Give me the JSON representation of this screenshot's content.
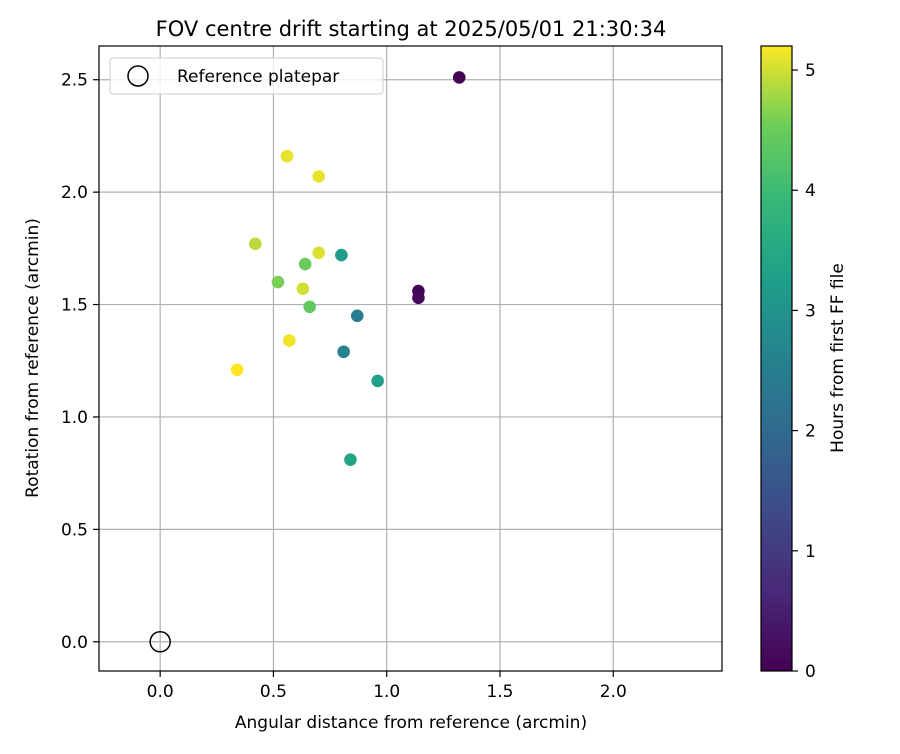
{
  "chart_data": {
    "type": "scatter",
    "title": "FOV centre drift starting at 2025/05/01 21:30:34",
    "xlabel": "Angular distance from reference (arcmin)",
    "ylabel": "Rotation from reference (arcmin)",
    "xlim": [
      -0.27,
      2.48
    ],
    "ylim": [
      -0.13,
      2.65
    ],
    "x_ticks": [
      0.0,
      0.5,
      1.0,
      1.5,
      2.0
    ],
    "x_tick_labels": [
      "0.0",
      "0.5",
      "1.0",
      "1.5",
      "2.0"
    ],
    "y_ticks": [
      0.0,
      0.5,
      1.0,
      1.5,
      2.0,
      2.5
    ],
    "y_tick_labels": [
      "0.0",
      "0.5",
      "1.0",
      "1.5",
      "2.0",
      "2.5"
    ],
    "grid": true,
    "legend": {
      "placement": "top-left",
      "entries": [
        {
          "label": "Reference platepar",
          "marker": "open-circle"
        }
      ]
    },
    "reference_point": {
      "x": 0.0,
      "y": 0.0
    },
    "colorbar": {
      "label": "Hours from first FF file",
      "colormap": "viridis",
      "range": [
        0,
        5.2
      ],
      "ticks": [
        0,
        1,
        2,
        3,
        4,
        5
      ],
      "tick_labels": [
        "0",
        "1",
        "2",
        "3",
        "4",
        "5"
      ]
    },
    "points": [
      {
        "x": 1.32,
        "y": 2.51,
        "hours": 0.0
      },
      {
        "x": 1.14,
        "y": 1.56,
        "hours": 0.05
      },
      {
        "x": 1.14,
        "y": 1.53,
        "hours": 0.1
      },
      {
        "x": 0.87,
        "y": 1.45,
        "hours": 2.5
      },
      {
        "x": 0.81,
        "y": 1.29,
        "hours": 2.6
      },
      {
        "x": 0.8,
        "y": 1.72,
        "hours": 3.2
      },
      {
        "x": 0.96,
        "y": 1.16,
        "hours": 3.3
      },
      {
        "x": 0.84,
        "y": 0.81,
        "hours": 3.4
      },
      {
        "x": 0.66,
        "y": 1.49,
        "hours": 4.4
      },
      {
        "x": 0.64,
        "y": 1.68,
        "hours": 4.5
      },
      {
        "x": 0.52,
        "y": 1.6,
        "hours": 4.6
      },
      {
        "x": 0.42,
        "y": 1.77,
        "hours": 4.9
      },
      {
        "x": 0.63,
        "y": 1.57,
        "hours": 5.0
      },
      {
        "x": 0.7,
        "y": 1.73,
        "hours": 5.05
      },
      {
        "x": 0.56,
        "y": 2.16,
        "hours": 5.1
      },
      {
        "x": 0.7,
        "y": 2.07,
        "hours": 5.1
      },
      {
        "x": 0.57,
        "y": 1.34,
        "hours": 5.15
      },
      {
        "x": 0.34,
        "y": 1.21,
        "hours": 5.2
      }
    ]
  }
}
